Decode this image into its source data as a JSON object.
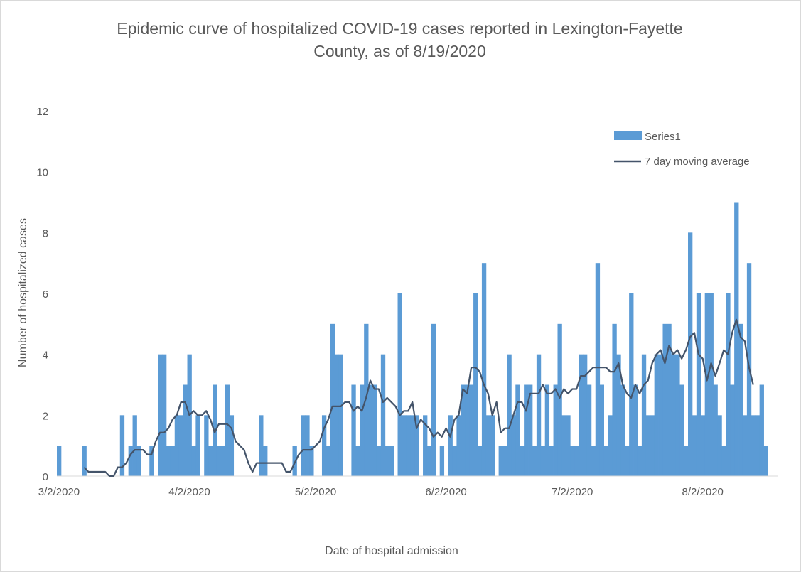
{
  "chart_data": {
    "type": "bar",
    "title_lines": [
      "Epidemic curve of hospitalized COVID-19 cases reported in Lexington-Fayette",
      "County, as of 8/19/2020"
    ],
    "xlabel": "Date of hospital admission",
    "ylabel": "Number of hospitalized cases",
    "start_date": "3/2/2020",
    "x_ticks": [
      "3/2/2020",
      "4/2/2020",
      "5/2/2020",
      "6/2/2020",
      "7/2/2020",
      "8/2/2020"
    ],
    "y_ticks": [
      "0",
      "2",
      "4",
      "6",
      "8",
      "10",
      "12"
    ],
    "ylim": [
      0,
      12
    ],
    "legend_position": "top-right",
    "bar_series": {
      "name": "Series1",
      "color": "#5b9bd5",
      "values": [
        1,
        0,
        0,
        0,
        0,
        0,
        1,
        0,
        0,
        0,
        0,
        0,
        0,
        0,
        0,
        2,
        0,
        1,
        2,
        1,
        0,
        0,
        1,
        0,
        4,
        4,
        1,
        1,
        2,
        2,
        3,
        4,
        1,
        2,
        0,
        2,
        1,
        3,
        1,
        1,
        3,
        2,
        0,
        0,
        0,
        0,
        0,
        0,
        2,
        1,
        0,
        0,
        0,
        0,
        0,
        0,
        1,
        0,
        2,
        2,
        1,
        0,
        0,
        2,
        1,
        5,
        4,
        4,
        0,
        0,
        3,
        1,
        3,
        5,
        3,
        3,
        1,
        4,
        1,
        1,
        0,
        6,
        2,
        2,
        2,
        2,
        0,
        2,
        1,
        5,
        0,
        1,
        0,
        2,
        1,
        2,
        3,
        3,
        3,
        6,
        1,
        7,
        2,
        2,
        0,
        1,
        1,
        4,
        2,
        3,
        1,
        3,
        3,
        1,
        4,
        1,
        3,
        1,
        3,
        5,
        2,
        2,
        1,
        1,
        4,
        4,
        3,
        1,
        7,
        3,
        1,
        2,
        5,
        4,
        3,
        1,
        6,
        3,
        1,
        4,
        2,
        2,
        4,
        4,
        5,
        5,
        4,
        4,
        3,
        1,
        8,
        2,
        6,
        2,
        6,
        6,
        3,
        2,
        1,
        6,
        3,
        9,
        5,
        2,
        7,
        2,
        2,
        3,
        1
      ]
    },
    "line_series": {
      "name": "7 day moving average",
      "color": "#44546a",
      "values": [
        null,
        null,
        null,
        null,
        null,
        null,
        0.29,
        0.14,
        0.14,
        0.14,
        0.14,
        0.14,
        0.0,
        0.0,
        0.29,
        0.29,
        0.43,
        0.71,
        0.86,
        0.86,
        0.86,
        0.71,
        0.71,
        1.14,
        1.43,
        1.43,
        1.57,
        1.86,
        2.0,
        2.43,
        2.43,
        2.0,
        2.14,
        2.0,
        2.0,
        2.14,
        1.86,
        1.43,
        1.71,
        1.71,
        1.71,
        1.57,
        1.14,
        1.0,
        0.86,
        0.43,
        0.14,
        0.43,
        0.43,
        0.43,
        0.43,
        0.43,
        0.43,
        0.43,
        0.14,
        0.14,
        0.43,
        0.71,
        0.86,
        0.86,
        0.86,
        1.0,
        1.14,
        1.57,
        1.86,
        2.29,
        2.29,
        2.29,
        2.43,
        2.43,
        2.14,
        2.29,
        2.14,
        2.57,
        3.14,
        2.86,
        2.86,
        2.43,
        2.57,
        2.43,
        2.29,
        2.0,
        2.14,
        2.14,
        2.43,
        1.57,
        1.86,
        1.71,
        1.57,
        1.29,
        1.43,
        1.29,
        1.57,
        1.29,
        1.86,
        2.0,
        2.86,
        2.71,
        3.57,
        3.57,
        3.43,
        3.0,
        2.71,
        2.0,
        2.43,
        1.43,
        1.57,
        1.57,
        2.0,
        2.43,
        2.43,
        2.14,
        2.71,
        2.71,
        2.71,
        3.0,
        2.71,
        2.71,
        2.86,
        2.57,
        2.86,
        2.71,
        2.86,
        2.86,
        3.29,
        3.29,
        3.43,
        3.57,
        3.57,
        3.57,
        3.57,
        3.43,
        3.43,
        3.71,
        3.0,
        2.71,
        2.57,
        3.0,
        2.71,
        3.0,
        3.14,
        3.71,
        4.0,
        4.14,
        3.71,
        4.29,
        4.0,
        4.14,
        3.86,
        4.14,
        4.57,
        4.71,
        4.0,
        3.86,
        3.14,
        3.71,
        3.29,
        3.71,
        4.14,
        4.0,
        4.71,
        5.14,
        4.57,
        4.43,
        3.57,
        3.0
      ]
    }
  }
}
